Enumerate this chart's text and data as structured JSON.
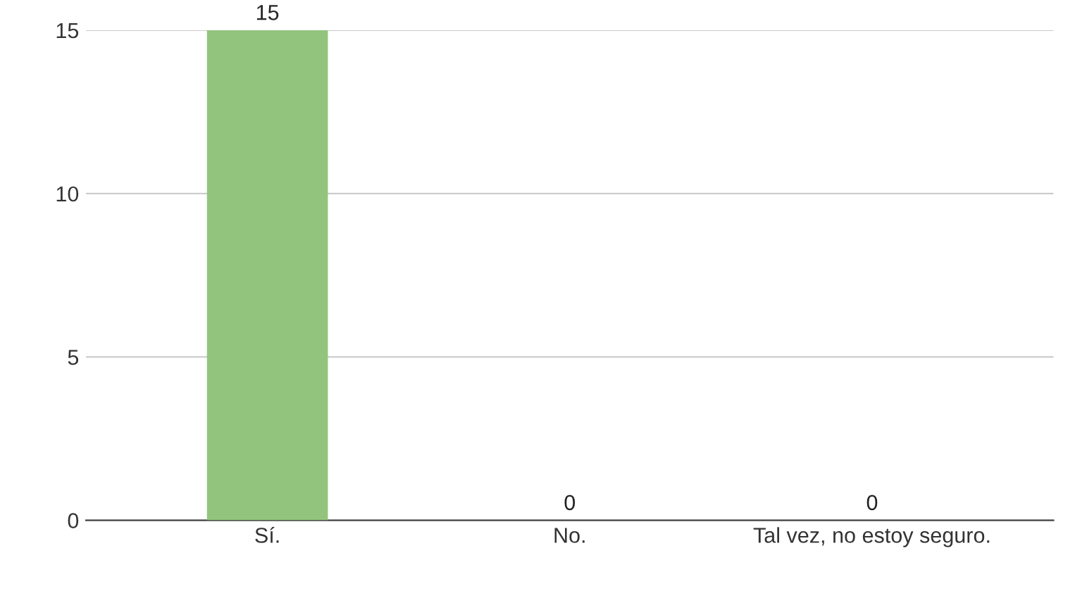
{
  "chart_data": {
    "type": "bar",
    "categories": [
      "Sí.",
      "No.",
      "Tal vez, no estoy seguro."
    ],
    "values": [
      15,
      0,
      0
    ],
    "color": "#93c47d",
    "ylim": [
      0,
      15
    ],
    "yticks": [
      0,
      5,
      10,
      15
    ],
    "grid": "y",
    "data_labels": true
  }
}
